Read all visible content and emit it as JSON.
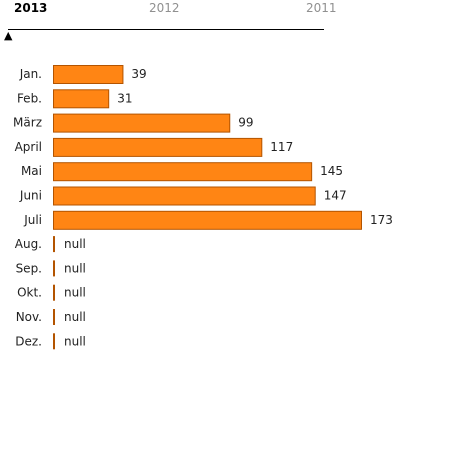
{
  "year_tabs": [
    {
      "label": "2013",
      "active": true
    },
    {
      "label": "2012",
      "active": false
    },
    {
      "label": "2011",
      "active": false
    }
  ],
  "timeline_marker": "▲",
  "chart_data": {
    "type": "bar",
    "orientation": "horizontal",
    "categories": [
      "Jan.",
      "Feb.",
      "März",
      "April",
      "Mai",
      "Juni",
      "Juli",
      "Aug.",
      "Sep.",
      "Okt.",
      "Nov.",
      "Dez."
    ],
    "values": [
      39,
      31,
      99,
      117,
      145,
      147,
      173,
      null,
      null,
      null,
      null,
      null
    ],
    "value_labels": [
      "39",
      "31",
      "99",
      "117",
      "145",
      "147",
      "173",
      "null",
      "null",
      "null",
      "null",
      "null"
    ],
    "bar_color": "#ff8514",
    "bar_border_color": "#b35400",
    "xlim": [
      0,
      173
    ],
    "grid": false
  }
}
